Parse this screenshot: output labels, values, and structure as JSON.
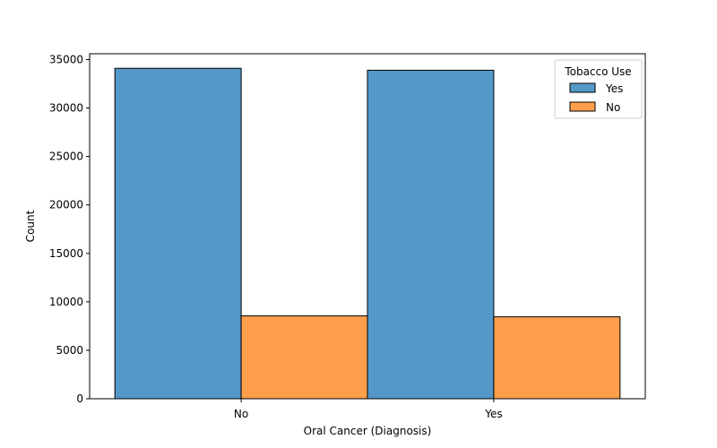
{
  "chart_data": {
    "type": "bar",
    "title": "",
    "xlabel": "Oral Cancer (Diagnosis)",
    "ylabel": "Count",
    "categories": [
      "No",
      "Yes"
    ],
    "series": [
      {
        "name": "Yes",
        "values": [
          34100,
          33900
        ],
        "color": "#5498c8"
      },
      {
        "name": "No",
        "values": [
          8550,
          8450
        ],
        "color": "#ff9f4b"
      }
    ],
    "ylim": [
      0,
      35600
    ],
    "yticks": [
      0,
      5000,
      10000,
      15000,
      20000,
      25000,
      30000,
      35000
    ],
    "legend": {
      "title": "Tobacco Use",
      "placement": "top-right"
    },
    "grid": false
  }
}
